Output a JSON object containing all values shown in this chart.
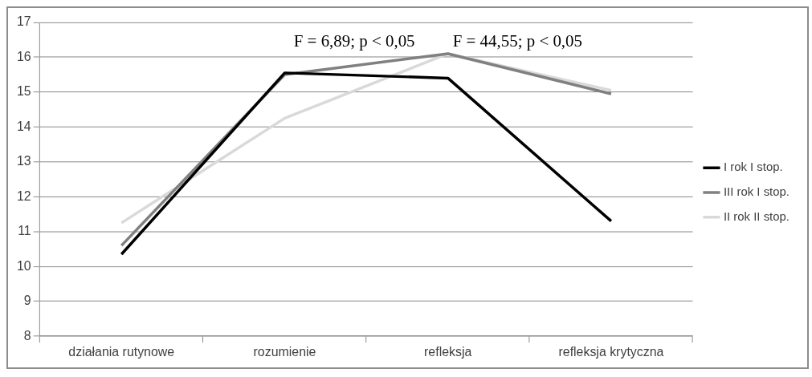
{
  "chart_data": {
    "type": "line",
    "categories": [
      "działania rutynowe",
      "rozumienie",
      "refleksja",
      "refleksja krytyczna"
    ],
    "series": [
      {
        "name": "I rok I stop.",
        "color": "#000000",
        "values": [
          10.35,
          15.55,
          15.4,
          11.3
        ]
      },
      {
        "name": "III rok I stop.",
        "color": "#808080",
        "values": [
          10.6,
          15.5,
          16.1,
          14.95
        ]
      },
      {
        "name": "II rok II stop.",
        "color": "#d9d9d9",
        "values": [
          11.25,
          14.25,
          16.1,
          15.05
        ]
      }
    ],
    "ylim": [
      8,
      17
    ],
    "yticks": [
      8,
      9,
      10,
      11,
      12,
      13,
      14,
      15,
      16,
      17
    ],
    "grid": "y",
    "legend": "right",
    "marker": "none",
    "line_style": "solid",
    "annotations": [
      "F = 6,89; p < 0,05",
      "F = 44,55; p < 0,05"
    ]
  }
}
